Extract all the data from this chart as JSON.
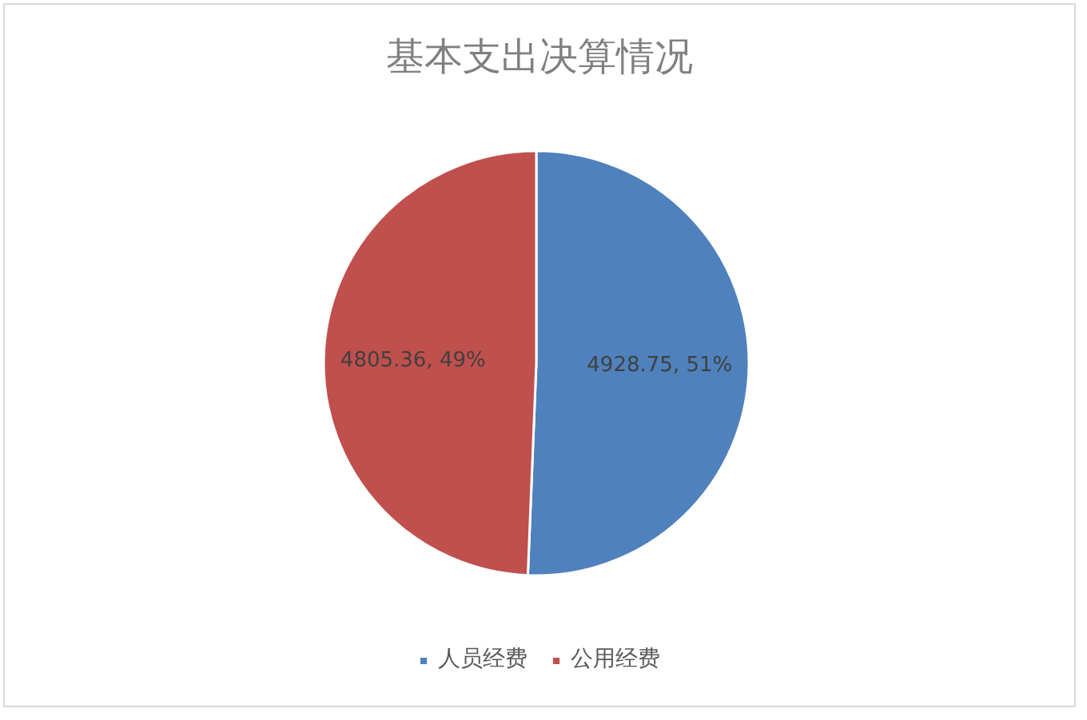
{
  "chart_data": {
    "type": "pie",
    "title": "基本支出决算情况",
    "categories": [
      "人员经费",
      "公用经费"
    ],
    "values": [
      4928.75,
      4805.36
    ],
    "colors": [
      "#4f81bd",
      "#c0504d"
    ],
    "value_labels": [
      "4928.75, 51%",
      "4805.36, 49%"
    ],
    "legend": "bottom"
  }
}
